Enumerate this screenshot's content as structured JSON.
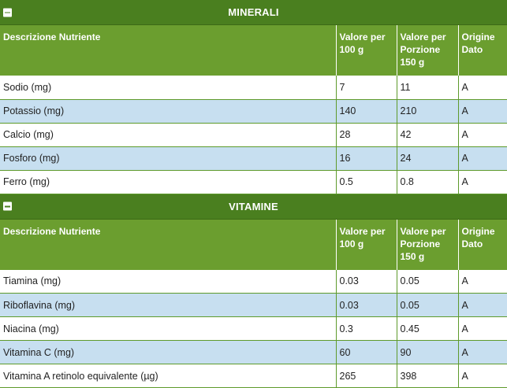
{
  "columns": [
    "Descrizione Nutriente",
    "Valore per 100 g",
    "Valore per Porzione 150 g",
    "Origine Dato"
  ],
  "sections": [
    {
      "title": "MINERALI",
      "rows": [
        {
          "name": "Sodio (mg)",
          "per100": "7",
          "perPortion": "11",
          "origin": "A"
        },
        {
          "name": "Potassio (mg)",
          "per100": "140",
          "perPortion": "210",
          "origin": "A"
        },
        {
          "name": "Calcio (mg)",
          "per100": "28",
          "perPortion": "42",
          "origin": "A"
        },
        {
          "name": "Fosforo (mg)",
          "per100": "16",
          "perPortion": "24",
          "origin": "A"
        },
        {
          "name": "Ferro (mg)",
          "per100": "0.5",
          "perPortion": "0.8",
          "origin": "A"
        }
      ]
    },
    {
      "title": "VITAMINE",
      "rows": [
        {
          "name": "Tiamina (mg)",
          "per100": "0.03",
          "perPortion": "0.05",
          "origin": "A"
        },
        {
          "name": "Riboflavina (mg)",
          "per100": "0.03",
          "perPortion": "0.05",
          "origin": "A"
        },
        {
          "name": "Niacina (mg)",
          "per100": "0.3",
          "perPortion": "0.45",
          "origin": "A"
        },
        {
          "name": "Vitamina C (mg)",
          "per100": "60",
          "perPortion": "90",
          "origin": "A"
        },
        {
          "name": "Vitamina A retinolo equivalente (µg)",
          "per100": "265",
          "perPortion": "398",
          "origin": "A"
        }
      ]
    }
  ],
  "colors": {
    "header": "#4a7f1f",
    "columnHeader": "#6b9e2f",
    "stripe": "#c7dff0",
    "border": "#5e9a2b"
  }
}
